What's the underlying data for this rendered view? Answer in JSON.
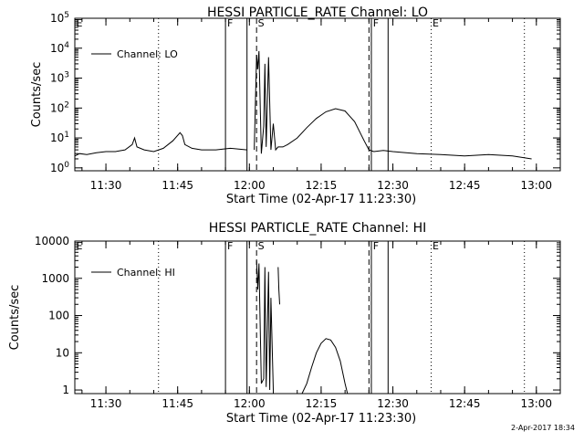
{
  "footer_timestamp": "2-Apr-2017 18:34",
  "chart_data": [
    {
      "type": "line",
      "title": "HESSI PARTICLE_RATE Channel: LO",
      "xlabel": "Start Time (02-Apr-17 11:23:30)",
      "ylabel": "Counts/sec",
      "yscale": "log",
      "xlim": [
        "11:23:30",
        "13:05:00"
      ],
      "ylim": [
        0.8,
        100000
      ],
      "x_tick_labels": [
        "11:30",
        "11:45",
        "12:00",
        "12:15",
        "12:30",
        "12:45",
        "13:00"
      ],
      "y_tick_labels": [
        "10^0",
        "10^1",
        "10^2",
        "10^3",
        "10^4",
        "10^5"
      ],
      "grid": false,
      "legend": {
        "position": "top-left",
        "entries": [
          "Channel: LO"
        ]
      },
      "markers": [
        {
          "label": "E",
          "time": "11:23:30",
          "style": "dotted"
        },
        {
          "label": "",
          "time": "11:41:00",
          "style": "dotted"
        },
        {
          "label": "F",
          "time": "11:55:00",
          "style": "solid"
        },
        {
          "label": "",
          "time": "11:59:30",
          "style": "solid"
        },
        {
          "label": "S",
          "time": "12:01:30",
          "style": "dashed"
        },
        {
          "label": "",
          "time": "12:25:00",
          "style": "dashed"
        },
        {
          "label": "F",
          "time": "12:25:30",
          "style": "solid"
        },
        {
          "label": "",
          "time": "12:29:00",
          "style": "solid"
        },
        {
          "label": "E",
          "time": "12:38:00",
          "style": "dotted"
        },
        {
          "label": "",
          "time": "12:57:30",
          "style": "dotted"
        }
      ],
      "series": [
        {
          "name": "Channel: LO",
          "segments": [
            {
              "x": [
                "11:23:30",
                "11:24:30",
                "11:26:00",
                "11:28:00",
                "11:30:00",
                "11:32:00",
                "11:34:00",
                "11:35:30",
                "11:36:00",
                "11:36:30",
                "11:38:00",
                "11:40:00",
                "11:42:00",
                "11:44:00",
                "11:45:30",
                "11:46:00",
                "11:46:30",
                "11:48:00",
                "11:50:00",
                "11:53:00",
                "11:56:00",
                "11:59:30"
              ],
              "y": [
                2.5,
                3.0,
                2.8,
                3.2,
                3.5,
                3.5,
                4.0,
                6.0,
                10.0,
                5.0,
                4.0,
                3.5,
                4.5,
                8.0,
                15.0,
                12.0,
                6.0,
                4.5,
                4.0,
                4.0,
                4.5,
                4.0
              ]
            },
            {
              "x": [
                "12:01:00",
                "12:01:30",
                "12:01:45",
                "12:02:00",
                "12:02:30",
                "12:03:00",
                "12:03:15",
                "12:03:30",
                "12:04:00",
                "12:04:30",
                "12:05:00",
                "12:05:30",
                "12:06:00",
                "12:07:00",
                "12:08:00",
                "12:10:00",
                "12:12:00",
                "12:14:00",
                "12:16:00",
                "12:18:00",
                "12:20:00",
                "12:22:00",
                "12:24:00",
                "12:25:00",
                "12:26:00",
                "12:28:00",
                "12:30:00",
                "12:35:00",
                "12:40:00",
                "12:45:00",
                "12:50:00",
                "12:55:00",
                "12:59:00"
              ],
              "y": [
                4.0,
                6000,
                2000,
                8000,
                3.0,
                25,
                3000,
                5.0,
                5000,
                4.0,
                30,
                4.0,
                5.0,
                5.0,
                6.0,
                10,
                22,
                45,
                75,
                95,
                80,
                35,
                8.0,
                4.0,
                3.5,
                3.8,
                3.5,
                3.0,
                2.8,
                2.5,
                2.8,
                2.5,
                2.0
              ]
            }
          ]
        }
      ]
    },
    {
      "type": "line",
      "title": "HESSI PARTICLE_RATE Channel: HI",
      "xlabel": "Start Time (02-Apr-17 11:23:30)",
      "ylabel": "Counts/sec",
      "yscale": "log",
      "xlim": [
        "11:23:30",
        "13:05:00"
      ],
      "ylim": [
        0.8,
        10000
      ],
      "x_tick_labels": [
        "11:30",
        "11:45",
        "12:00",
        "12:15",
        "12:30",
        "12:45",
        "13:00"
      ],
      "y_tick_labels": [
        "1",
        "10",
        "100",
        "1000",
        "10000"
      ],
      "grid": false,
      "legend": {
        "position": "top-left",
        "entries": [
          "Channel: HI"
        ]
      },
      "markers": [
        {
          "label": "E",
          "time": "11:23:30",
          "style": "dotted"
        },
        {
          "label": "",
          "time": "11:41:00",
          "style": "dotted"
        },
        {
          "label": "F",
          "time": "11:55:00",
          "style": "solid"
        },
        {
          "label": "",
          "time": "11:59:30",
          "style": "solid"
        },
        {
          "label": "S",
          "time": "12:01:30",
          "style": "dashed"
        },
        {
          "label": "",
          "time": "12:25:00",
          "style": "dashed"
        },
        {
          "label": "F",
          "time": "12:25:30",
          "style": "solid"
        },
        {
          "label": "",
          "time": "12:29:00",
          "style": "solid"
        },
        {
          "label": "E",
          "time": "12:38:00",
          "style": "dotted"
        },
        {
          "label": "",
          "time": "12:57:30",
          "style": "dotted"
        }
      ],
      "series": [
        {
          "name": "Channel: HI",
          "segments": [
            {
              "x": [
                "12:01:30",
                "12:01:45",
                "12:02:00",
                "12:02:30",
                "12:03:00",
                "12:03:15",
                "12:03:30",
                "12:04:00",
                "12:04:15",
                "12:04:30",
                "12:05:00"
              ],
              "y": [
                3000,
                500,
                2500,
                1.5,
                2,
                2000,
                1.2,
                1500,
                1.0,
                300,
                1.0
              ]
            },
            {
              "x": [
                "12:06:00",
                "12:06:10",
                "12:06:20"
              ],
              "y": [
                2000,
                500,
                200
              ]
            },
            {
              "x": [
                "12:11:00",
                "12:12:00",
                "12:13:00",
                "12:14:00",
                "12:15:00",
                "12:16:00",
                "12:17:00",
                "12:18:00",
                "12:19:00",
                "12:20:00",
                "12:20:30"
              ],
              "y": [
                0.8,
                1.5,
                4,
                10,
                18,
                24,
                22,
                14,
                6,
                1.5,
                0.8
              ]
            }
          ]
        }
      ]
    }
  ]
}
